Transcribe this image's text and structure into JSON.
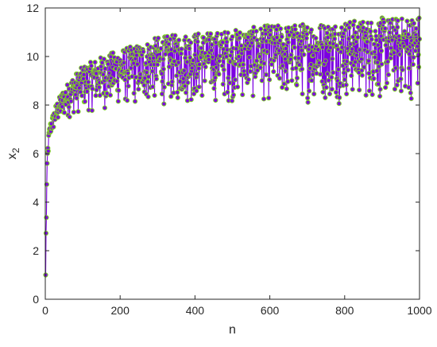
{
  "chart_data": {
    "type": "line",
    "xlabel": "n",
    "ylabel_base": "x",
    "ylabel_sub": "2",
    "xlim": [
      0,
      1000
    ],
    "ylim": [
      0,
      12
    ],
    "xticks": [
      0,
      200,
      400,
      600,
      800,
      1000
    ],
    "yticks": [
      0,
      2,
      4,
      6,
      8,
      10,
      12
    ],
    "grid": false,
    "box": true,
    "series": [
      {
        "line_color": "#7b00e0",
        "marker": "circle",
        "marker_edge_color": "#7ed321",
        "marker_face_color": "#7b00e0",
        "envelope_n": [
          1,
          2,
          3,
          4,
          5,
          6,
          8,
          10,
          15,
          20,
          30,
          40,
          50,
          75,
          100,
          150,
          200,
          250,
          300,
          350,
          400,
          450,
          500,
          550,
          600,
          650,
          700,
          750,
          800,
          850,
          900,
          950,
          1000
        ],
        "envelope_upper": [
          1.0,
          3.1,
          4.2,
          5.0,
          5.6,
          6.2,
          6.6,
          7.0,
          7.4,
          7.6,
          8.1,
          8.4,
          8.7,
          9.2,
          9.6,
          10.0,
          10.3,
          10.5,
          10.8,
          10.9,
          11.0,
          11.0,
          11.1,
          11.2,
          11.3,
          11.3,
          11.4,
          11.4,
          11.5,
          11.5,
          11.6,
          11.6,
          11.7
        ],
        "envelope_lower": [
          1.0,
          2.0,
          3.0,
          3.8,
          4.5,
          5.2,
          5.8,
          6.2,
          6.6,
          6.8,
          7.0,
          7.2,
          7.3,
          7.5,
          7.6,
          7.7,
          7.8,
          7.8,
          7.9,
          7.9,
          7.9,
          8.0,
          8.0,
          8.0,
          8.0,
          8.0,
          8.0,
          8.0,
          8.0,
          8.0,
          8.0,
          8.0,
          8.0
        ]
      }
    ]
  }
}
